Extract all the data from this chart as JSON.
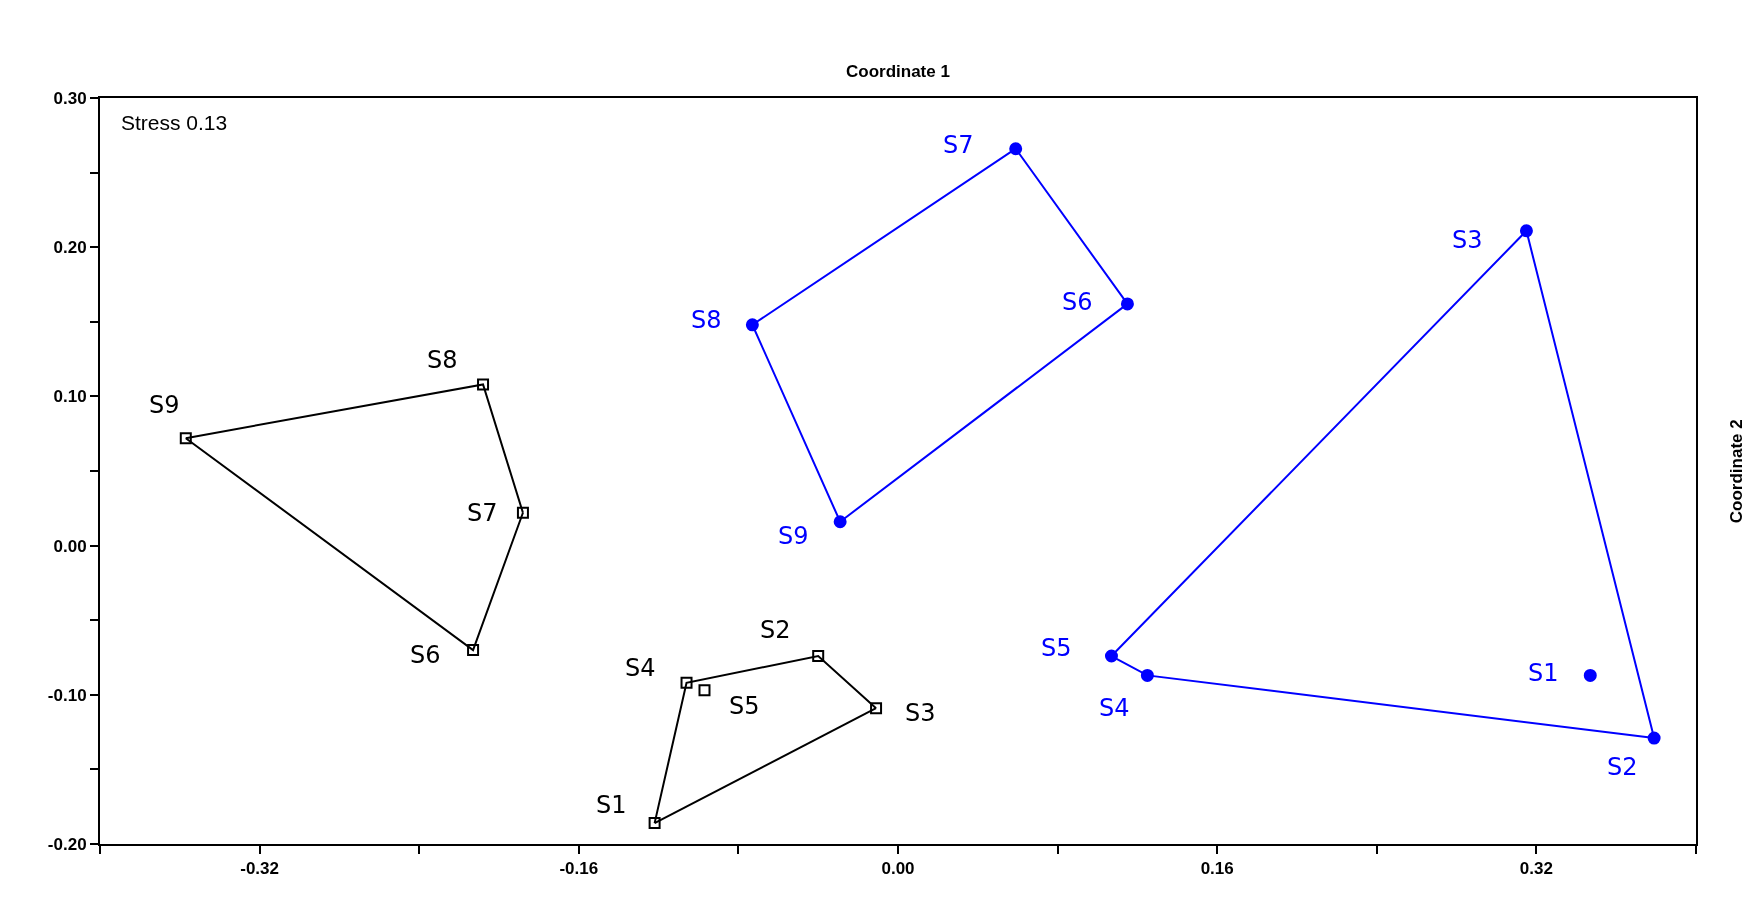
{
  "chart_data": {
    "type": "scatter",
    "xlabel": "Coordinate 1",
    "ylabel": "Coordinate 2",
    "xlim": [
      -0.4,
      0.4
    ],
    "ylim": [
      -0.2,
      0.3
    ],
    "xticks": [
      {
        "value": -0.4,
        "label": null
      },
      {
        "value": -0.32,
        "label": "-0.32"
      },
      {
        "value": -0.24,
        "label": null
      },
      {
        "value": -0.16,
        "label": "-0.16"
      },
      {
        "value": -0.08,
        "label": null
      },
      {
        "value": 0,
        "label": "0.00"
      },
      {
        "value": 0.08,
        "label": null
      },
      {
        "value": 0.16,
        "label": "0.16"
      },
      {
        "value": 0.24,
        "label": null
      },
      {
        "value": 0.32,
        "label": "0.32"
      },
      {
        "value": 0.4,
        "label": null
      }
    ],
    "yticks": [
      {
        "value": -0.2,
        "label": "-0.20"
      },
      {
        "value": -0.15,
        "label": null
      },
      {
        "value": -0.1,
        "label": "-0.10"
      },
      {
        "value": -0.05,
        "label": null
      },
      {
        "value": 0,
        "label": "0.00"
      },
      {
        "value": 0.05,
        "label": null
      },
      {
        "value": 0.1,
        "label": "0.10"
      },
      {
        "value": 0.15,
        "label": null
      },
      {
        "value": 0.2,
        "label": "0.20"
      },
      {
        "value": 0.25,
        "label": null
      },
      {
        "value": 0.3,
        "label": "0.30"
      }
    ],
    "series": [
      {
        "marker": "square",
        "color": "#000000",
        "x": [
          -0.122,
          -0.04,
          -0.011,
          -0.106,
          -0.097,
          -0.213,
          -0.188,
          -0.208,
          -0.357
        ],
        "values": [
          -0.186,
          -0.074,
          -0.109,
          -0.092,
          -0.097,
          -0.07,
          0.022,
          0.108,
          0.072
        ]
      },
      {
        "marker": "circle",
        "color": "#0000ff",
        "x": [
          0.347,
          0.379,
          0.315,
          0.125,
          0.107,
          0.115,
          0.059,
          -0.073,
          -0.029
        ],
        "values": [
          -0.087,
          -0.129,
          0.211,
          -0.087,
          -0.074,
          0.162,
          0.266,
          0.148,
          0.016
        ]
      },
      {
        "type": "line",
        "marker": "none",
        "color": "#000000",
        "x": [
          -0.357,
          -0.208,
          -0.188
        ],
        "values": [
          0.072,
          0.108,
          0.022
        ]
      },
      {
        "type": "line",
        "marker": "none",
        "color": "#000000",
        "x": [
          -0.357,
          -0.213,
          -0.188
        ],
        "values": [
          0.072,
          -0.07,
          0.022
        ]
      },
      {
        "type": "line",
        "marker": "none",
        "color": "#000000",
        "x": [
          -0.122,
          -0.106,
          -0.04,
          -0.011
        ],
        "values": [
          -0.186,
          -0.092,
          -0.074,
          -0.109
        ]
      },
      {
        "type": "line",
        "marker": "none",
        "color": "#000000",
        "x": [
          -0.122,
          -0.011
        ],
        "values": [
          -0.186,
          -0.109
        ]
      },
      {
        "type": "line",
        "marker": "none",
        "color": "#0000ff",
        "x": [
          -0.073,
          0.059,
          0.115
        ],
        "values": [
          0.148,
          0.266,
          0.162
        ]
      },
      {
        "type": "line",
        "marker": "none",
        "color": "#0000ff",
        "x": [
          -0.073,
          -0.029,
          0.115
        ],
        "values": [
          0.148,
          0.016,
          0.162
        ]
      },
      {
        "type": "line",
        "marker": "none",
        "color": "#0000ff",
        "x": [
          0.107,
          0.315,
          0.379
        ],
        "values": [
          -0.074,
          0.211,
          -0.129
        ]
      },
      {
        "type": "line",
        "marker": "none",
        "color": "#0000ff",
        "x": [
          0.107,
          0.125,
          0.379
        ],
        "values": [
          -0.074,
          -0.087,
          -0.129
        ]
      }
    ],
    "annotations": [
      "Stress 0.13",
      {
        "text": "S1",
        "x": -0.122,
        "y": -0.186
      },
      {
        "text": "S2",
        "x": -0.04,
        "y": -0.074
      },
      {
        "text": "S3",
        "x": -0.011,
        "y": -0.109
      },
      {
        "text": "S4",
        "x": -0.106,
        "y": -0.092
      },
      {
        "text": "S5",
        "x": -0.097,
        "y": -0.097
      },
      {
        "text": "S6",
        "x": -0.213,
        "y": -0.07
      },
      {
        "text": "S7",
        "x": -0.188,
        "y": 0.022
      },
      {
        "text": "S8",
        "x": -0.208,
        "y": 0.108
      },
      {
        "text": "S9",
        "x": -0.357,
        "y": 0.072
      },
      {
        "text": "S1",
        "x": 0.347,
        "y": -0.087
      },
      {
        "text": "S2",
        "x": 0.379,
        "y": -0.129
      },
      {
        "text": "S3",
        "x": 0.315,
        "y": 0.211
      },
      {
        "text": "S4",
        "x": 0.125,
        "y": -0.087
      },
      {
        "text": "S5",
        "x": 0.107,
        "y": -0.074
      },
      {
        "text": "S6",
        "x": 0.115,
        "y": 0.162
      },
      {
        "text": "S7",
        "x": 0.059,
        "y": 0.266
      },
      {
        "text": "S8",
        "x": -0.073,
        "y": 0.148
      },
      {
        "text": "S9",
        "x": -0.029,
        "y": 0.016
      }
    ]
  }
}
